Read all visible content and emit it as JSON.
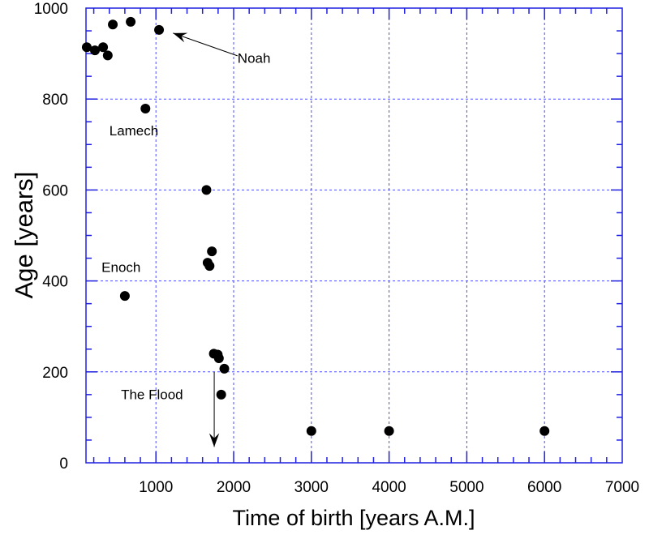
{
  "chart_data": {
    "type": "scatter",
    "title": "",
    "xlabel": "Time of birth [years A.M.]",
    "ylabel": "Age [years]",
    "xlim": [
      100,
      7000
    ],
    "ylim": [
      0,
      1000
    ],
    "xticks": [
      1000,
      2000,
      3000,
      4000,
      5000,
      6000,
      7000
    ],
    "xtick_labels": [
      "1000",
      "2000",
      "3000",
      "4000",
      "5000",
      "6000",
      "7000"
    ],
    "yticks": [
      0,
      200,
      400,
      600,
      800,
      1000
    ],
    "ytick_labels": [
      "0",
      "200",
      "400",
      "600",
      "800",
      "1000"
    ],
    "grid": true,
    "colors": {
      "axis": "#2020e0",
      "grid": "#4a4aff",
      "points": "#000000"
    },
    "points": [
      [
        110,
        914
      ],
      [
        215,
        907
      ],
      [
        320,
        914
      ],
      [
        380,
        896
      ],
      [
        445,
        964
      ],
      [
        600,
        367
      ],
      [
        675,
        970
      ],
      [
        865,
        779
      ],
      [
        1040,
        952
      ],
      [
        1650,
        600
      ],
      [
        1665,
        440
      ],
      [
        1690,
        433
      ],
      [
        1720,
        465
      ],
      [
        1745,
        240
      ],
      [
        1795,
        238
      ],
      [
        1810,
        230
      ],
      [
        1840,
        150
      ],
      [
        1880,
        207
      ],
      [
        3000,
        70
      ],
      [
        4000,
        70
      ],
      [
        6000,
        70
      ]
    ],
    "annotations": [
      {
        "text": "Noah",
        "x": 2050,
        "y": 880,
        "arrow_to": [
          1220,
          945
        ],
        "arrow_from": [
          2050,
          895
        ]
      },
      {
        "text": "Lamech",
        "x": 400,
        "y": 720
      },
      {
        "text": "Enoch",
        "x": 300,
        "y": 420
      },
      {
        "text": "The Flood",
        "x": 550,
        "y": 140,
        "arrow_from": [
          1750,
          200
        ],
        "arrow_to": [
          1750,
          35
        ]
      }
    ]
  }
}
